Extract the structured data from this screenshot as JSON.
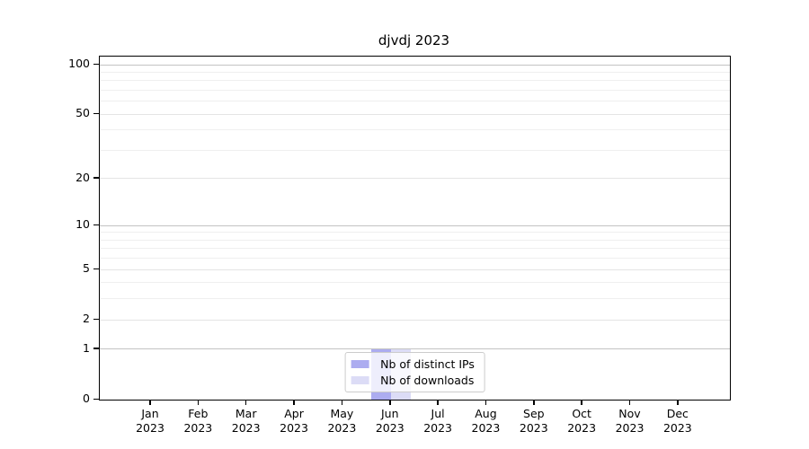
{
  "chart_data": {
    "type": "bar",
    "title": "djvdj 2023",
    "categories": [
      "Jan 2023",
      "Feb 2023",
      "Mar 2023",
      "Apr 2023",
      "May 2023",
      "Jun 2023",
      "Jul 2023",
      "Aug 2023",
      "Sep 2023",
      "Oct 2023",
      "Nov 2023",
      "Dec 2023"
    ],
    "x_tick_line1": [
      "Jan",
      "Feb",
      "Mar",
      "Apr",
      "May",
      "Jun",
      "Jul",
      "Aug",
      "Sep",
      "Oct",
      "Nov",
      "Dec"
    ],
    "x_tick_line2": "2023",
    "series": [
      {
        "name": "Nb of distinct IPs",
        "color": "#acacf0",
        "values": [
          0,
          0,
          0,
          0,
          0,
          1,
          0,
          0,
          0,
          0,
          0,
          0
        ]
      },
      {
        "name": "Nb of downloads",
        "color": "#dcdcf6",
        "values": [
          0,
          0,
          0,
          0,
          0,
          1,
          0,
          0,
          0,
          0,
          0,
          0
        ]
      }
    ],
    "xlabel": "",
    "ylabel": "",
    "yaxis": {
      "scale": "log10(1+y)",
      "major_ticks": [
        0,
        1,
        2,
        5,
        10,
        20,
        50,
        100
      ],
      "decade_gridlines": [
        1,
        10,
        100
      ],
      "minor_gridlines": [
        3,
        4,
        6,
        7,
        8,
        9,
        30,
        40,
        60,
        70,
        80,
        90
      ],
      "ylim": [
        0,
        112
      ]
    },
    "grid": true,
    "legend_position": "lower center inside plot",
    "bar_values_note": "single grouped bar at Jun 2023: distinct IPs = 1, downloads = 1"
  },
  "colors": {
    "distinct_ips_bar": "#acacf0",
    "downloads_bar": "#dcdcf6",
    "decade_gridline": "#c3c3c3",
    "major_gridline": "#e4e4e4",
    "minor_gridline": "#efefef",
    "axis": "#000000",
    "legend_border": "#cccccc"
  }
}
